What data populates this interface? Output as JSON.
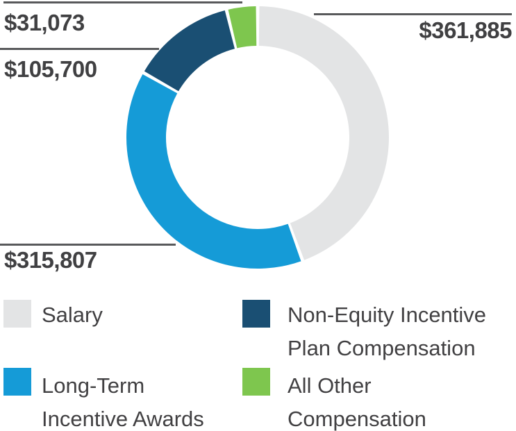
{
  "chart_data": {
    "type": "pie",
    "subtype": "donut",
    "title": "",
    "direction": "clockwise",
    "start_angle_deg": 0,
    "inner_radius_ratio": 0.7,
    "legend_position": "bottom",
    "series": [
      {
        "name": "Salary",
        "value": 361885,
        "label": "$361,885",
        "color": "#E3E4E5"
      },
      {
        "name": "Long-Term Incentive Awards",
        "value": 315807,
        "label": "$315,807",
        "color": "#159BD7"
      },
      {
        "name": "Non-Equity Incentive Plan Compensation",
        "value": 105700,
        "label": "$105,700",
        "color": "#1A4F73"
      },
      {
        "name": "All Other Compensation",
        "value": 31073,
        "label": "$31,073",
        "color": "#7EC64E"
      }
    ],
    "total": 814465
  },
  "callouts": [
    {
      "text": "$31,073",
      "target": "All Other Compensation"
    },
    {
      "text": "$105,700",
      "target": "Non-Equity Incentive Plan Compensation"
    },
    {
      "text": "$361,885",
      "target": "Salary"
    },
    {
      "text": "$315,807",
      "target": "Long-Term Incentive Awards"
    }
  ],
  "legend": {
    "items": [
      {
        "name": "Salary",
        "color": "#E3E4E5",
        "line1": "Salary",
        "line2": ""
      },
      {
        "name": "Non-Equity Incentive Plan Compensation",
        "color": "#1A4F73",
        "line1": "Non-Equity Incentive",
        "line2": "Plan Compensation"
      },
      {
        "name": "Long-Term Incentive Awards",
        "color": "#159BD7",
        "line1": "Long-Term",
        "line2": "Incentive Awards"
      },
      {
        "name": "All Other Compensation",
        "color": "#7EC64E",
        "line1": "All Other",
        "line2": "Compensation"
      }
    ]
  },
  "colors": {
    "leader_line": "#58595B",
    "amount_text": "#404042",
    "legend_text": "#414042",
    "background": "#FFFFFF"
  }
}
